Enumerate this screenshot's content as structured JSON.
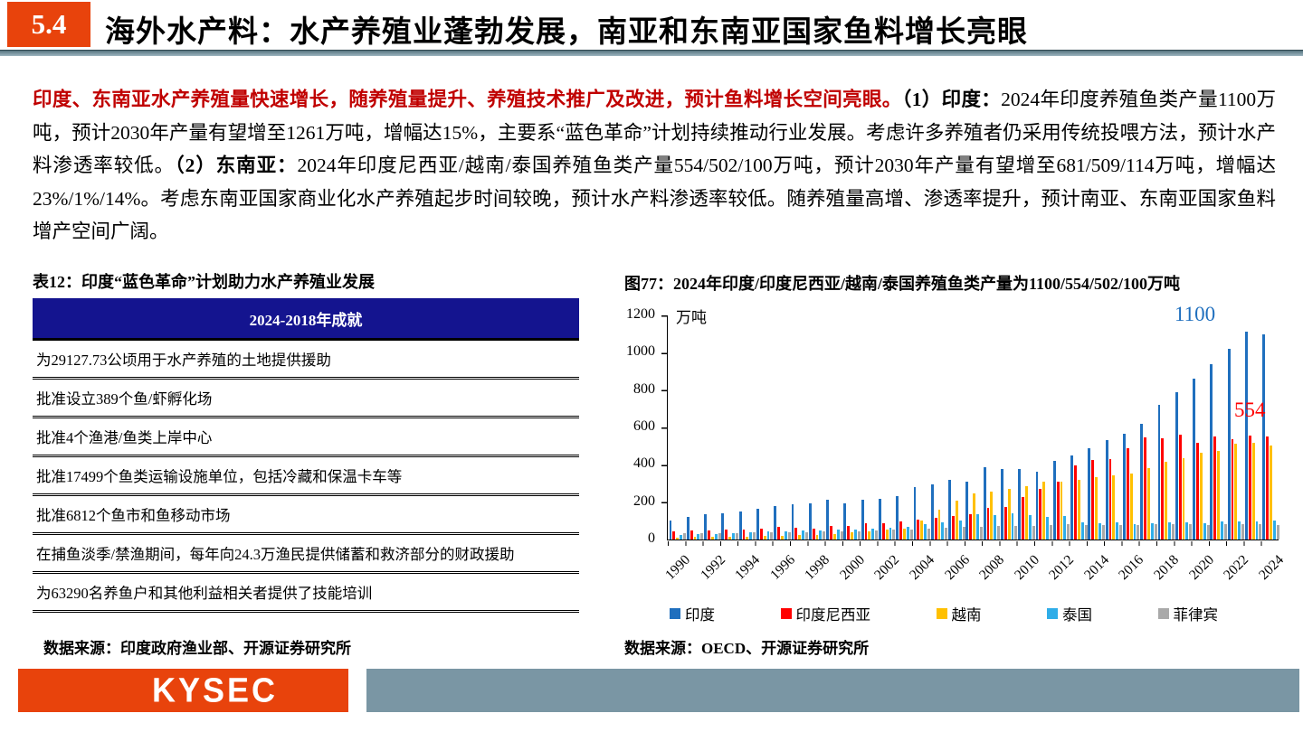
{
  "header": {
    "section_number": "5.4",
    "title": "海外水产料：水产养殖业蓬勃发展，南亚和东南亚国家鱼料增长亮眼"
  },
  "paragraph": {
    "lead_red": "印度、东南亚水产养殖量快速增长，随养殖量提升、养殖技术推广及改进，预计鱼料增长空间亮眼。",
    "point1_label": "（1）印度：",
    "point1_text": "2024年印度养殖鱼类产量1100万吨，预计2030年产量有望增至1261万吨，增幅达15%，主要系“蓝色革命”计划持续推动行业发展。考虑许多养殖者仍采用传统投喂方法，预计水产料渗透率较低。",
    "point2_label": "（2）东南亚：",
    "point2_text": "2024年印度尼西亚/越南/泰国养殖鱼类产量554/502/100万吨，预计2030年产量有望增至681/509/114万吨，增幅达23%/1%/14%。考虑东南亚国家商业化水产养殖起步时间较晚，预计水产料渗透率较低。随养殖量高增、渗透率提升，预计南亚、东南亚国家鱼料增产空间广阔。"
  },
  "table": {
    "caption": "表12：印度“蓝色革命”计划助力水产养殖业发展",
    "header": "2024-2018年成就",
    "rows": [
      "为29127.73公顷用于水产养殖的土地提供援助",
      "批准设立389个鱼/虾孵化场",
      "批准4个渔港/鱼类上岸中心",
      "批准17499个鱼类运输设施单位，包括冷藏和保温卡车等",
      "批准6812个鱼市和鱼移动市场",
      "在捕鱼淡季/禁渔期间，每年向24.3万渔民提供储蓄和救济部分的财政援助",
      "为63290名养鱼户和其他利益相关者提供了技能培训"
    ],
    "source": "数据来源：印度政府渔业部、开源证券研究所"
  },
  "chart": {
    "caption": "图77：2024年印度/印度尼西亚/越南/泰国养殖鱼类产量为1100/554/502/100万吨",
    "source": "数据来源：OECD、开源证券研究所"
  },
  "chart_data": {
    "type": "bar",
    "title": "2024年印度/印度尼西亚/越南/泰国养殖鱼类产量为1100/554/502/100万吨",
    "unit_label": "万吨",
    "ylabel": "万吨",
    "ylim": [
      0,
      1200
    ],
    "y_ticks": [
      0,
      200,
      400,
      600,
      800,
      1000,
      1200
    ],
    "grid": false,
    "legend_position": "bottom",
    "x": [
      1990,
      1991,
      1992,
      1993,
      1994,
      1995,
      1996,
      1997,
      1998,
      1999,
      2000,
      2001,
      2002,
      2003,
      2004,
      2005,
      2006,
      2007,
      2008,
      2009,
      2010,
      2011,
      2012,
      2013,
      2014,
      2015,
      2016,
      2017,
      2018,
      2019,
      2020,
      2021,
      2022,
      2023,
      2024
    ],
    "x_tick_labels": [
      "1990",
      "1992",
      "1994",
      "1996",
      "1998",
      "2000",
      "2002",
      "2004",
      "2006",
      "2008",
      "2010",
      "2012",
      "2014",
      "2016",
      "2018",
      "2020",
      "2022",
      "2024"
    ],
    "series": [
      {
        "name": "印度",
        "color": "#1F6FBE",
        "values": [
          100,
          120,
          135,
          140,
          152,
          165,
          177,
          190,
          192,
          212,
          195,
          212,
          220,
          230,
          280,
          296,
          318,
          312,
          385,
          378,
          377,
          365,
          420,
          448,
          488,
          533,
          568,
          620,
          723,
          791,
          862,
          938,
          1022,
          1113,
          1100
        ]
      },
      {
        "name": "印度尼西亚",
        "color": "#FF0000",
        "values": [
          45,
          47,
          50,
          54,
          55,
          57,
          68,
          63,
          60,
          72,
          75,
          85,
          88,
          95,
          105,
          118,
          128,
          135,
          168,
          172,
          228,
          270,
          308,
          395,
          424,
          433,
          490,
          549,
          540,
          563,
          520,
          553,
          535,
          556,
          554
        ]
      },
      {
        "name": "越南",
        "color": "#FFC000",
        "values": [
          12,
          13,
          14,
          15,
          16,
          18,
          20,
          22,
          25,
          28,
          40,
          45,
          55,
          60,
          100,
          160,
          210,
          245,
          255,
          270,
          285,
          308,
          310,
          320,
          335,
          345,
          355,
          380,
          418,
          435,
          465,
          475,
          515,
          520,
          502
        ]
      },
      {
        "name": "泰国",
        "color": "#2FADE8",
        "values": [
          25,
          28,
          30,
          33,
          38,
          43,
          46,
          48,
          50,
          53,
          55,
          60,
          65,
          70,
          80,
          90,
          100,
          135,
          130,
          138,
          130,
          120,
          125,
          90,
          85,
          90,
          80,
          85,
          90,
          90,
          85,
          95,
          95,
          95,
          100
        ]
      },
      {
        "name": "菲律宾",
        "color": "#A9A9A9",
        "values": [
          33,
          34,
          35,
          36,
          37,
          38,
          40,
          41,
          42,
          44,
          45,
          47,
          52,
          55,
          58,
          62,
          66,
          70,
          74,
          75,
          75,
          77,
          80,
          78,
          78,
          78,
          78,
          80,
          80,
          82,
          78,
          80,
          80,
          80,
          78
        ]
      }
    ],
    "annotations": [
      {
        "text": "1100",
        "series": "印度",
        "year": 2024,
        "color": "#1F6FBE"
      },
      {
        "text": "554",
        "series": "印度尼西亚",
        "year": 2024,
        "color": "#FF0000"
      }
    ]
  },
  "footer": {
    "logo_text": "KYSEC"
  }
}
